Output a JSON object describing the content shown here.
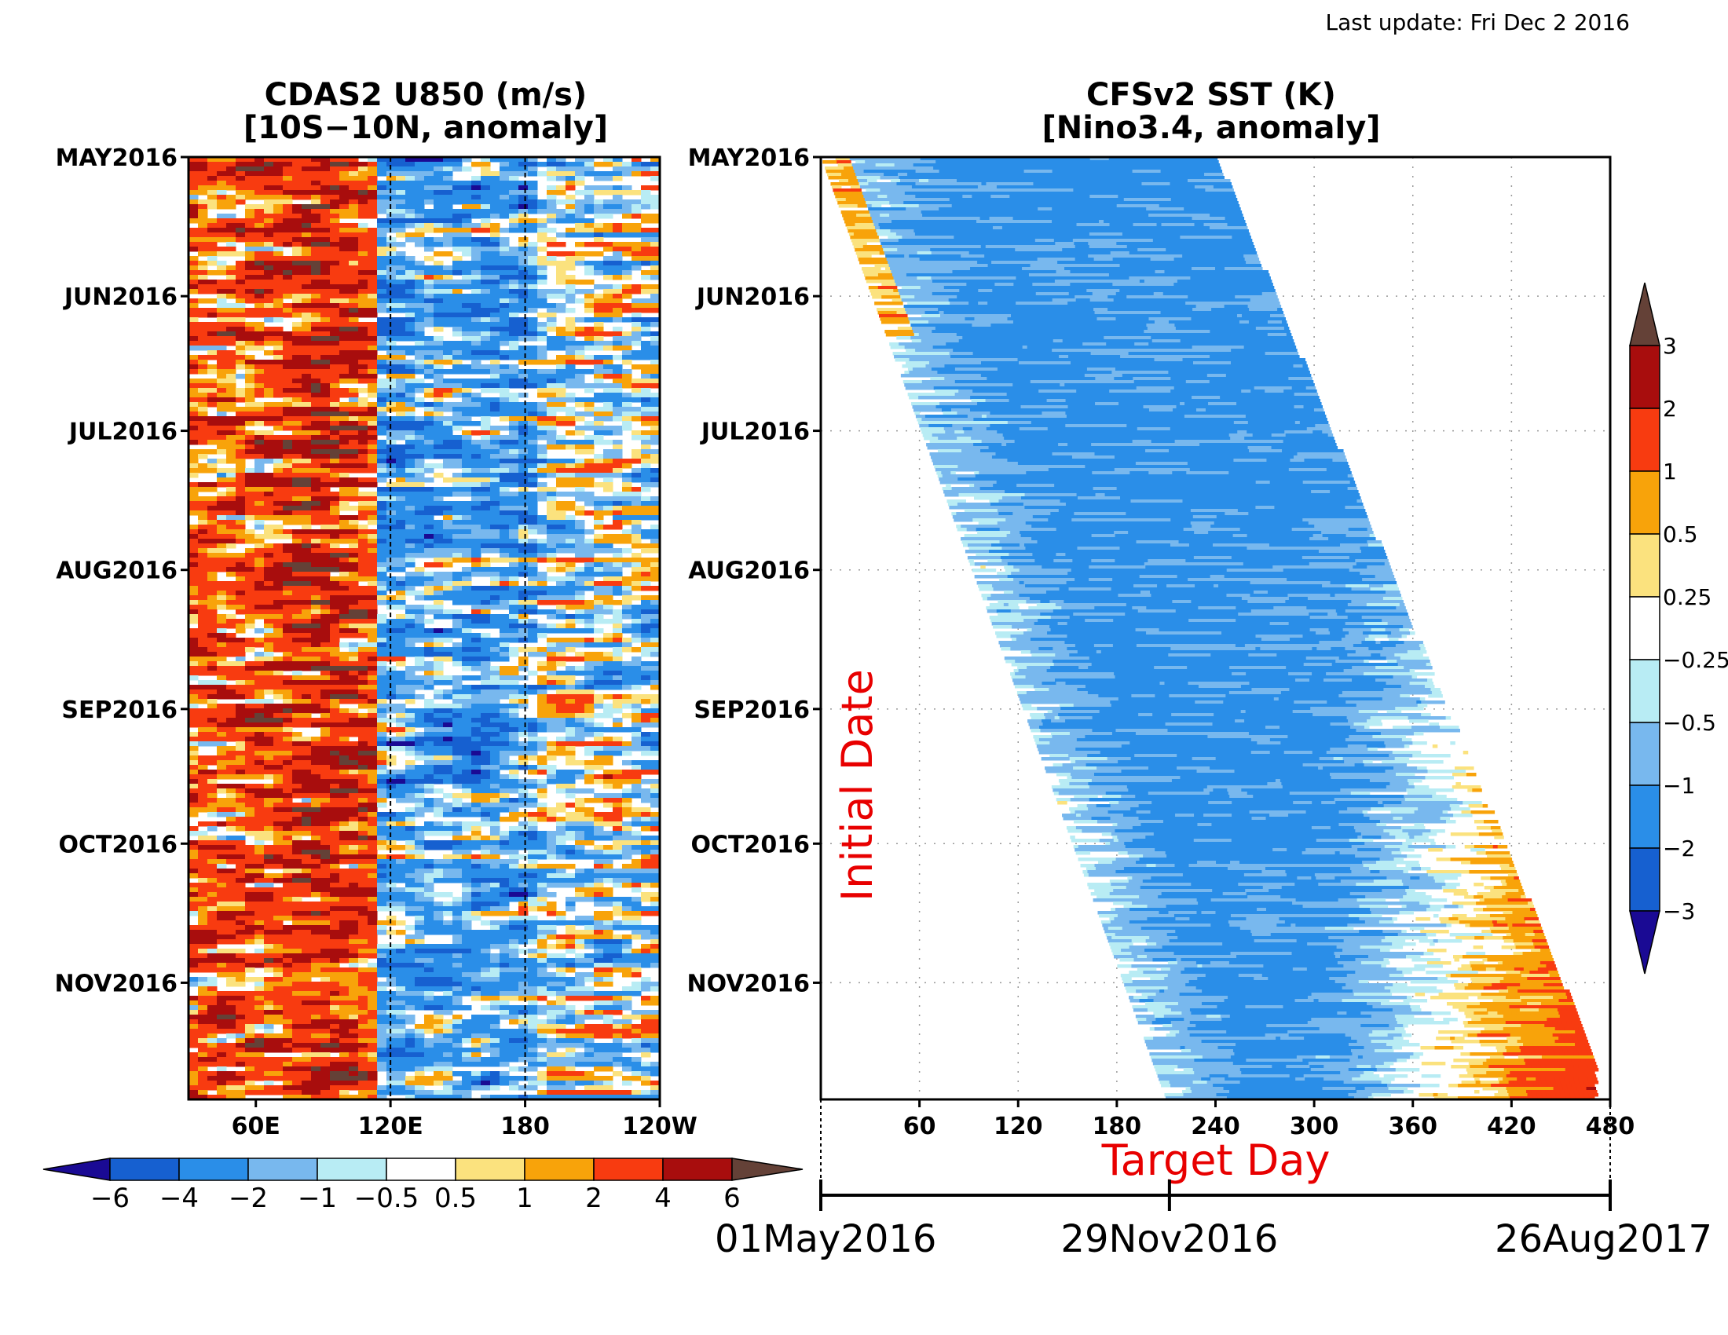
{
  "last_update": "Last update: Fri Dec 2 2016",
  "chart_data": [
    {
      "type": "heatmap",
      "title": "CDAS2 U850 (m/s)",
      "subtitle": "[10S−10N, anomaly]",
      "x_tick_labels": [
        "60E",
        "120E",
        "180",
        "120W"
      ],
      "x_ticks_deg": [
        60,
        120,
        180,
        240
      ],
      "x_range_deg": [
        30,
        240
      ],
      "reference_lines_deg": [
        120,
        180
      ],
      "y_tick_labels": [
        "MAY2016",
        "JUN2016",
        "JUL2016",
        "AUG2016",
        "SEP2016",
        "OCT2016",
        "NOV2016"
      ],
      "y_range_days": [
        0,
        210
      ],
      "y_tick_days": [
        0,
        31,
        61,
        92,
        123,
        153,
        184
      ],
      "colorbar": {
        "orientation": "horizontal",
        "levels": [
          -6,
          -4,
          -2,
          -1,
          -0.5,
          0.5,
          1,
          2,
          4,
          6
        ],
        "level_labels": [
          "−6",
          "−4",
          "−2",
          "−1",
          "−0.5",
          "0.5",
          "1",
          "2",
          "4",
          "6"
        ],
        "colors": [
          "#1a0a94",
          "#1660d0",
          "#2a8ee8",
          "#78b8ee",
          "#b8ecf4",
          "#ffffff",
          "#fbe27e",
          "#f8a30a",
          "#f83b10",
          "#a80d0d",
          "#644137"
        ]
      }
    },
    {
      "type": "heatmap",
      "title": "CFSv2 SST (K)",
      "subtitle": "[Nino3.4, anomaly]",
      "xlabel": "Target Day",
      "ylabel": "Initial Date",
      "x_tick_labels": [
        "60",
        "120",
        "180",
        "240",
        "300",
        "360",
        "420",
        "480"
      ],
      "x_ticks": [
        60,
        120,
        180,
        240,
        300,
        360,
        420,
        480
      ],
      "x_range": [
        0,
        480
      ],
      "y_tick_labels": [
        "MAY2016",
        "JUN2016",
        "JUL2016",
        "AUG2016",
        "SEP2016",
        "OCT2016",
        "NOV2016"
      ],
      "y_range_days": [
        0,
        210
      ],
      "y_tick_days": [
        0,
        31,
        61,
        92,
        123,
        153,
        184
      ],
      "date_axis": {
        "labels": [
          "01May2016",
          "29Nov2016",
          "26Aug2017"
        ],
        "target_days": [
          0,
          212,
          480
        ]
      },
      "colorbar": {
        "orientation": "vertical",
        "levels": [
          -3,
          -2,
          -1,
          -0.5,
          -0.25,
          0.25,
          0.5,
          1,
          2,
          3
        ],
        "level_labels": [
          "−3",
          "−2",
          "−1",
          "−0.5",
          "−0.25",
          "0.25",
          "0.5",
          "1",
          "2",
          "3"
        ],
        "colors": [
          "#1a0a94",
          "#1660d0",
          "#2a8ee8",
          "#78b8ee",
          "#b8ecf4",
          "#ffffff",
          "#fbe27e",
          "#f8a30a",
          "#f83b10",
          "#a80d0d",
          "#644137"
        ]
      }
    }
  ]
}
